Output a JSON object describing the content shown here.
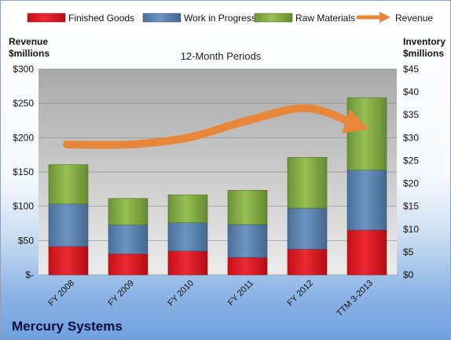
{
  "chart_data": {
    "type": "bar",
    "stacked": true,
    "title": "12-Month Periods",
    "left_axis_title": [
      "Revenue",
      "$millions"
    ],
    "right_axis_title": [
      "Inventory",
      "$millions"
    ],
    "categories": [
      "FY 2008",
      "FY 2009",
      "FY 2010",
      "FY 2011",
      "FY 2012",
      "TTM 3-2013"
    ],
    "left_axis": {
      "ylim": [
        0,
        300
      ],
      "tick_labels": [
        "$-",
        "$50",
        "$100",
        "$150",
        "$200",
        "$250",
        "$300"
      ]
    },
    "right_axis": {
      "ylim": [
        0,
        45
      ],
      "tick_labels": [
        "$0",
        "$5",
        "$10",
        "$15",
        "$20",
        "$25",
        "$30",
        "$35",
        "$40",
        "$45"
      ]
    },
    "series": [
      {
        "name": "Finished Goods",
        "axis": "right",
        "color": "#d9141e",
        "values": [
          6.2,
          4.6,
          5.2,
          3.8,
          5.6,
          9.8
        ]
      },
      {
        "name": "Work in Progress",
        "axis": "right",
        "color": "#4f81bd",
        "values": [
          9.3,
          6.3,
          6.2,
          7.2,
          9.0,
          13.1
        ]
      },
      {
        "name": "Raw Materials",
        "axis": "right",
        "color": "#77a336",
        "values": [
          8.6,
          5.8,
          6.1,
          7.5,
          11.1,
          15.8
        ]
      }
    ],
    "line_series": {
      "name": "Revenue",
      "axis": "left",
      "color": "#e8873a",
      "values": [
        190,
        190,
        200,
        225,
        243,
        218
      ]
    },
    "legend_position": "top",
    "grid": true
  },
  "company": "Mercury Systems"
}
